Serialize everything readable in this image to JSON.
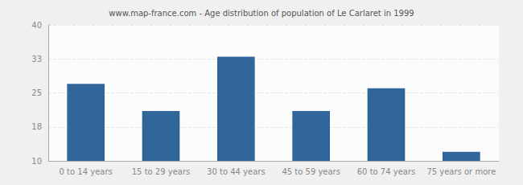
{
  "chart_data": {
    "type": "bar",
    "title": "www.map-france.com - Age distribution of population of Le Carlaret in 1999",
    "categories": [
      "0 to 14 years",
      "15 to 29 years",
      "30 to 44 years",
      "45 to 59 years",
      "60 to 74 years",
      "75 years or more"
    ],
    "values": [
      27,
      21,
      33,
      21,
      26,
      12
    ],
    "color": "#31669a",
    "ylim": [
      10,
      40
    ],
    "yticks": [
      10,
      {
        "value": 17.5,
        "label": "18"
      },
      25,
      {
        "value": 32.5,
        "label": "33"
      },
      40
    ],
    "grid": true
  }
}
